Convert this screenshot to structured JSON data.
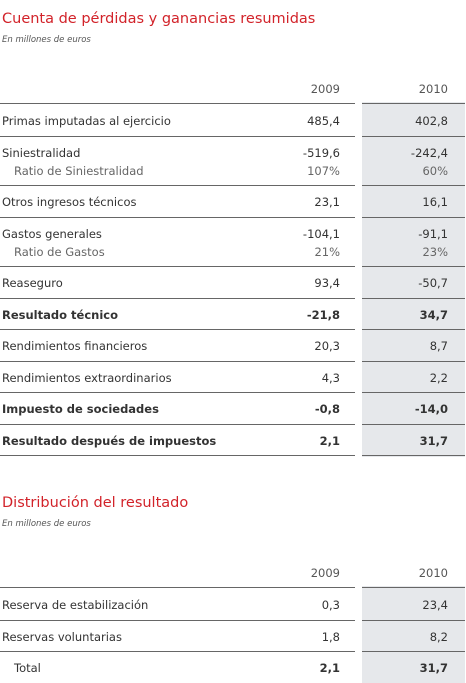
{
  "sections": [
    {
      "title": "Cuenta de pérdidas y ganancias resumidas",
      "subtitle": "En millones de euros",
      "table": {
        "header": [
          "2009",
          "2010"
        ],
        "groups": [
          [
            [
              "Primas imputadas al ejercicio",
              "485,4",
              "402,8"
            ]
          ],
          [
            [
              "Siniestralidad",
              "-519,6",
              "-242,4"
            ],
            [
              "Ratio de Siniestralidad",
              "107%",
              "60%"
            ]
          ],
          [
            [
              "Otros ingresos técnicos",
              "23,1",
              "16,1"
            ]
          ],
          [
            [
              "Gastos generales",
              "-104,1",
              "-91,1"
            ],
            [
              "Ratio de Gastos",
              "21%",
              "23%"
            ]
          ],
          [
            [
              "Reaseguro",
              "93,4",
              "-50,7"
            ]
          ],
          [
            [
              "Resultado técnico",
              "-21,8",
              "34,7"
            ]
          ],
          [
            [
              "Rendimientos financieros",
              "20,3",
              "8,7"
            ]
          ],
          [
            [
              "Rendimientos extraordinarios",
              "4,3",
              "2,2"
            ]
          ],
          [
            [
              "Impuesto de sociedades",
              "-0,8",
              "-14,0"
            ]
          ],
          [
            [
              "Resultado después de impuestos",
              "2,1",
              "31,7"
            ]
          ]
        ]
      }
    },
    {
      "title": "Distribución del resultado",
      "subtitle": "En millones de euros",
      "table": {
        "header": [
          "2009",
          "2010"
        ],
        "groups": [
          [
            [
              "Reserva de estabilización",
              "0,3",
              "23,4"
            ]
          ],
          [
            [
              "Reservas voluntarias",
              "1,8",
              "8,2"
            ]
          ],
          [
            [
              "Total",
              "2,1",
              "31,7"
            ]
          ]
        ]
      }
    }
  ]
}
